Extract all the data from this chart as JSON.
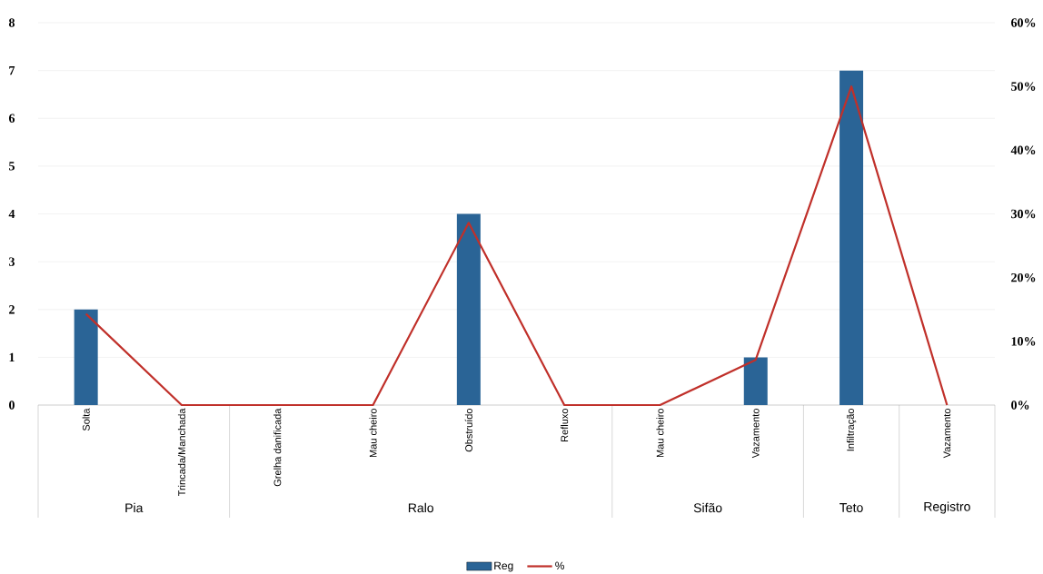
{
  "chart_data": {
    "type": "bar",
    "categories": [
      "Solta",
      "Trincada/Manchada",
      "Grelha danificada",
      "Mau cheiro",
      "Obstruído",
      "Refluxo",
      "Mau cheiro",
      "Vazamento",
      "Infiltração",
      "Vazamento"
    ],
    "series": [
      {
        "name": "Reg",
        "color": "#2a6496",
        "values": [
          2,
          0,
          0,
          0,
          4,
          0,
          0,
          1,
          7,
          0
        ]
      },
      {
        "name": "%",
        "type": "line",
        "axis": "y2",
        "color": "#c0302a",
        "values": [
          14.3,
          0,
          0,
          0,
          28.6,
          0,
          0,
          7.1,
          50,
          0
        ]
      }
    ],
    "ylim": [
      0,
      8
    ],
    "yticks": [
      0,
      1,
      2,
      3,
      4,
      5,
      6,
      7,
      8
    ],
    "y2lim": [
      0,
      60
    ],
    "y2ticks": [
      {
        "value": 0,
        "label": "0%"
      },
      {
        "value": 10,
        "label": "10%"
      },
      {
        "value": 20,
        "label": "20%"
      },
      {
        "value": 30,
        "label": "30%"
      },
      {
        "value": 40,
        "label": "40%"
      },
      {
        "value": 50,
        "label": "50%"
      },
      {
        "value": 60,
        "label": "60%"
      }
    ],
    "annotations": [
      "Pia",
      "Ralo",
      "Sifão",
      "Teto",
      "Registro"
    ],
    "grid": "y",
    "legend": "bottom"
  }
}
